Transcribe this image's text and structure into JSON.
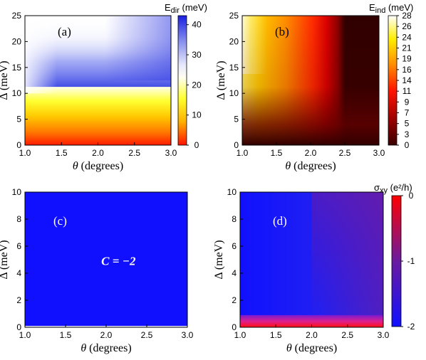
{
  "chart_data": [
    {
      "type": "heatmap",
      "panel_label": "(a)",
      "xlabel": "θ (degrees)",
      "ylabel": "Δ (meV)",
      "xlim": [
        1.0,
        3.0
      ],
      "ylim": [
        0,
        25
      ],
      "x_ticks": [
        "1.0",
        "1.5",
        "2.0",
        "2.5",
        "3.0"
      ],
      "y_ticks": [
        "0",
        "5",
        "10",
        "15",
        "20",
        "25"
      ],
      "colorbar": {
        "label": "E",
        "label_sub": "dir",
        "label_unit": "(meV)",
        "min": 0,
        "max": 43,
        "ticks": [
          "0",
          "10",
          "20",
          "30",
          "40"
        ],
        "colormap": "red-yellow-white-blue"
      },
      "description_points": [
        {
          "theta": 1.0,
          "delta": 0,
          "value": 0
        },
        {
          "theta": 1.7,
          "delta": 12,
          "value": 24
        },
        {
          "theta": 1.75,
          "delta": 25,
          "value": 43
        },
        {
          "theta": 3.0,
          "delta": 25,
          "value": 37
        }
      ]
    },
    {
      "type": "heatmap",
      "panel_label": "(b)",
      "xlabel": "θ (degrees)",
      "ylabel": "Δ (meV)",
      "xlim": [
        1.0,
        3.0
      ],
      "ylim": [
        0,
        25
      ],
      "x_ticks": [
        "1.0",
        "1.5",
        "2.0",
        "2.5",
        "3.0"
      ],
      "y_ticks": [
        "0",
        "5",
        "10",
        "15",
        "20",
        "25"
      ],
      "colorbar": {
        "label": "E",
        "label_sub": "ind",
        "label_unit": "(meV)",
        "min": 0,
        "max": 28,
        "ticks": [
          "0",
          "3",
          "5",
          "7",
          "9",
          "11",
          "14",
          "16",
          "19",
          "21",
          "24",
          "26",
          "28"
        ],
        "colormap": "black-red-yellow-white"
      },
      "description_points": [
        {
          "theta": 1.2,
          "delta": 25,
          "value": 28
        },
        {
          "theta": 1.0,
          "delta": 0,
          "value": 0
        },
        {
          "theta": 2.5,
          "delta": 20,
          "value": 0
        }
      ]
    },
    {
      "type": "heatmap",
      "panel_label": "(c)",
      "xlabel": "θ (degrees)",
      "ylabel": "Δ (meV)",
      "xlim": [
        1.0,
        3.0
      ],
      "ylim": [
        0,
        10
      ],
      "x_ticks": [
        "1.0",
        "1.5",
        "2.0",
        "2.5",
        "3.0"
      ],
      "y_ticks": [
        "0",
        "2",
        "4",
        "6",
        "8",
        "10"
      ],
      "annotation": "C = −2",
      "uniform_value": -2,
      "colormap": "blue"
    },
    {
      "type": "heatmap",
      "panel_label": "(d)",
      "xlabel": "θ (degrees)",
      "ylabel": "Δ (meV)",
      "xlim": [
        1.0,
        3.0
      ],
      "ylim": [
        0,
        10
      ],
      "x_ticks": [
        "1.0",
        "1.5",
        "2.0",
        "2.5",
        "3.0"
      ],
      "y_ticks": [
        "0",
        "2",
        "4",
        "6",
        "8",
        "10"
      ],
      "colorbar": {
        "label": "σ",
        "label_sub": "xy",
        "label_unit": "(e²/h)",
        "min": -2,
        "max": 0,
        "ticks": [
          "0",
          "-1",
          "-2"
        ],
        "colormap": "blue-purple-red"
      },
      "description_points": [
        {
          "theta": 1.0,
          "delta": 5,
          "value": -2
        },
        {
          "theta": 2.0,
          "delta": 0.3,
          "value": -0.15
        },
        {
          "theta": 3.0,
          "delta": 10,
          "value": -1.5
        }
      ]
    }
  ]
}
